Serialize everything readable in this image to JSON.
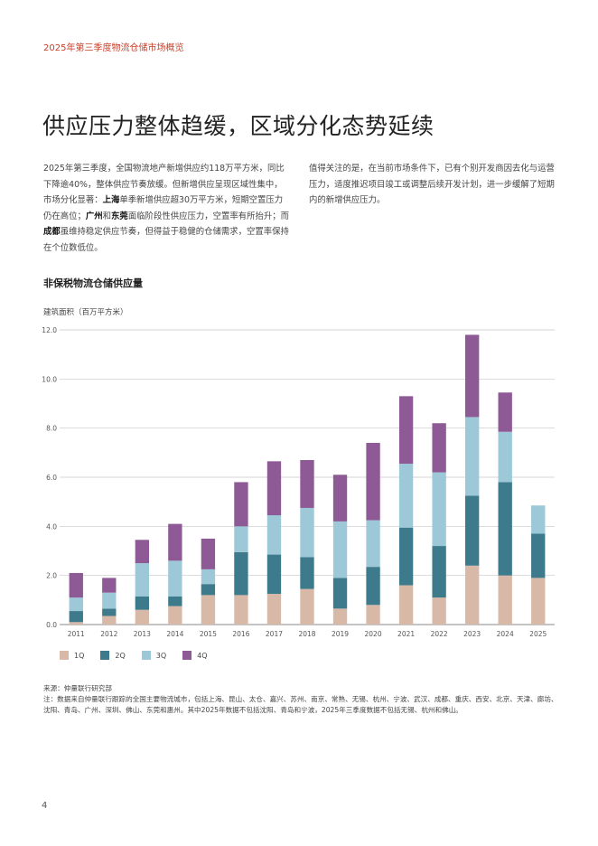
{
  "header": {
    "text": "2025年第三季度物流仓储市场概览"
  },
  "title": "供应压力整体趋缓，区域分化态势延续",
  "intro_left": {
    "p1": "2025年第三季度，全国物流地产新增供应约118万平方米，同比下降逾40%，整体供应节奏放缓。但新增供应呈现区域性集中，市场分化显著：",
    "shanghai": "上海",
    "p2": "单季新增供应超30万平方米，短期空置压力仍在高位；",
    "guangzhou": "广州",
    "and": "和",
    "dongguan": "东莞",
    "p3": "面临阶段性供应压力，空置率有所抬升；而",
    "chengdu": "成都",
    "p4": "虽维持稳定供应节奏，但得益于稳健的仓储需求，空置率保持在个位数低位。"
  },
  "intro_right": {
    "text": "值得关注的是，在当前市场条件下，已有个别开发商因去化与运营压力，适度推迟项目竣工或调整后续开发计划，进一步缓解了短期内的新增供应压力。"
  },
  "chart_heading": "非保税物流仓储供应量",
  "chart_unit": "建筑面积（百万平方米）",
  "chart_data": {
    "type": "bar",
    "stacked": true,
    "title": "非保税物流仓储供应量",
    "ylabel": "建筑面积（百万平方米）",
    "ylim": [
      0,
      12
    ],
    "yticks": [
      "0.0",
      "2.0",
      "4.0",
      "6.0",
      "8.0",
      "10.0",
      "12.0"
    ],
    "categories": [
      "2011",
      "2012",
      "2013",
      "2014",
      "2015",
      "2016",
      "2017",
      "2018",
      "2019",
      "2020",
      "2021",
      "2022",
      "2023",
      "2024",
      "2025"
    ],
    "series": [
      {
        "name": "1Q",
        "color": "#d8b9a8",
        "values": [
          0.1,
          0.35,
          0.6,
          0.75,
          1.2,
          1.2,
          1.25,
          1.45,
          0.65,
          0.8,
          1.6,
          1.1,
          2.4,
          2.0,
          1.9
        ]
      },
      {
        "name": "2Q",
        "color": "#3d7a8c",
        "values": [
          0.45,
          0.3,
          0.55,
          0.4,
          0.45,
          1.75,
          1.6,
          1.3,
          1.25,
          1.55,
          2.35,
          2.1,
          2.85,
          3.8,
          1.8
        ]
      },
      {
        "name": "3Q",
        "color": "#9cc8d7",
        "values": [
          0.55,
          0.65,
          1.35,
          1.45,
          0.6,
          1.05,
          1.6,
          2.0,
          2.3,
          1.9,
          2.6,
          3.0,
          3.2,
          2.05,
          1.15
        ]
      },
      {
        "name": "4Q",
        "color": "#8e5a95",
        "values": [
          1.0,
          0.6,
          0.95,
          1.5,
          1.25,
          1.8,
          2.2,
          1.95,
          1.9,
          3.15,
          2.75,
          2.0,
          3.35,
          1.6,
          0
        ]
      }
    ]
  },
  "sources": {
    "source": "来源：仲量联行研究部",
    "note": "注：数据来自仲量联行跟踪的全国主要物流城市，包括上海、昆山、太仓、嘉兴、苏州、南京、常熟、无锡、杭州、宁波、武汉、成都、重庆、西安、北京、天津、廊坊、沈阳、青岛、广州、深圳、佛山、东莞和惠州。其中2025年数据不包括沈阳、青岛和宁波，2025年三季度数据不包括无锡、杭州和佛山。"
  },
  "page_number": "4"
}
